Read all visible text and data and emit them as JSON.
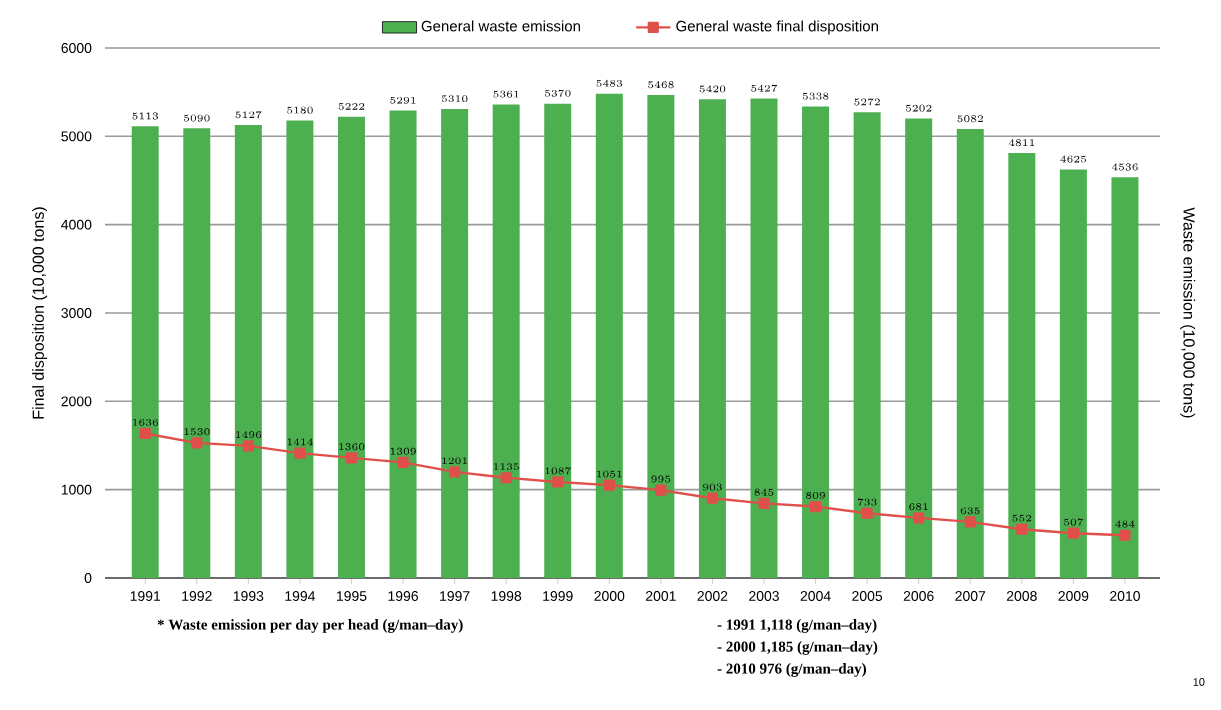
{
  "chart_data": {
    "type": "bar",
    "categories": [
      "1991",
      "1992",
      "1993",
      "1994",
      "1995",
      "1996",
      "1997",
      "1998",
      "1999",
      "2000",
      "2001",
      "2002",
      "2003",
      "2004",
      "2005",
      "2006",
      "2007",
      "2008",
      "2009",
      "2010"
    ],
    "series": [
      {
        "name": "General waste emission",
        "color": "#4caf50",
        "values": [
          5113,
          5090,
          5127,
          5180,
          5222,
          5291,
          5310,
          5361,
          5370,
          5483,
          5468,
          5420,
          5427,
          5338,
          5272,
          5202,
          5082,
          4811,
          4625,
          4536
        ]
      },
      {
        "name": "General waste final disposition",
        "type": "line",
        "color": "#e0504a",
        "marker": "square",
        "line_style": "solid",
        "values": [
          1636,
          1530,
          1496,
          1414,
          1360,
          1309,
          1201,
          1135,
          1087,
          1051,
          995,
          903,
          845,
          809,
          733,
          681,
          635,
          552,
          507,
          484
        ]
      }
    ],
    "ylabel": "Final disposition (10,000 tons)",
    "y2label": "Waste emission (10,000 tons)",
    "ylim": [
      0,
      6000
    ],
    "yticks": [
      0,
      1000,
      2000,
      3000,
      4000,
      5000,
      6000
    ],
    "grid": "y",
    "legend": "top",
    "data_labels": true,
    "annotations": [
      "* Waste emission per day per head (g/man–day)",
      "- 1991    1,118      (g/man–day)",
      "- 2000    1,185      (g/man–day)",
      "- 2010      976      (g/man–day)",
      "10"
    ]
  }
}
